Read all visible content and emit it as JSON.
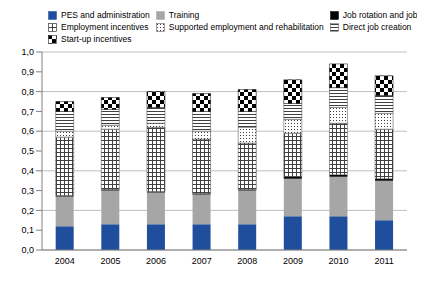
{
  "chart_data": {
    "type": "bar",
    "stacked": true,
    "grid": true,
    "legend": "top",
    "categories": [
      "2004",
      "2005",
      "2006",
      "2007",
      "2008",
      "2009",
      "2010",
      "2011"
    ],
    "ylim": [
      0,
      1
    ],
    "yticks": [
      {
        "value": 0,
        "label": "0,0"
      },
      {
        "value": 0.1,
        "label": "0,1"
      },
      {
        "value": 0.2,
        "label": "0,2"
      },
      {
        "value": 0.3,
        "label": "0,3"
      },
      {
        "value": 0.4,
        "label": "0,4"
      },
      {
        "value": 0.5,
        "label": "0,5"
      },
      {
        "value": 0.6,
        "label": "0,6"
      },
      {
        "value": 0.7,
        "label": "0,7"
      },
      {
        "value": 0.8,
        "label": "0,8"
      },
      {
        "value": 0.9,
        "label": "0,9"
      },
      {
        "value": 1,
        "label": "1,0"
      }
    ],
    "series": [
      {
        "name": "PES and administration",
        "color": "#1f4e9c",
        "values": [
          0.12,
          0.13,
          0.13,
          0.13,
          0.13,
          0.17,
          0.17,
          0.15
        ]
      },
      {
        "name": "Training",
        "color": "#a6a6a6",
        "values": [
          0.15,
          0.17,
          0.16,
          0.15,
          0.17,
          0.19,
          0.2,
          0.2
        ]
      },
      {
        "name": "Job rotation and job sharing",
        "color": "#000000",
        "values": [
          0.005,
          0.005,
          0.005,
          0.005,
          0.005,
          0.01,
          0.01,
          0.01
        ]
      },
      {
        "name": "Employment incentives",
        "color": "#404040",
        "values": [
          0.295,
          0.305,
          0.325,
          0.275,
          0.235,
          0.22,
          0.26,
          0.25
        ]
      },
      {
        "name": "Supported employment and rehabilitation",
        "color": "#404040",
        "values": [
          0.03,
          0.02,
          0.02,
          0.04,
          0.08,
          0.07,
          0.08,
          0.08
        ]
      },
      {
        "name": "Direct job creation",
        "color": "#404040",
        "values": [
          0.1,
          0.08,
          0.08,
          0.1,
          0.08,
          0.08,
          0.1,
          0.09
        ]
      },
      {
        "name": "Start-up incentives",
        "color": "#000000",
        "values": [
          0.05,
          0.06,
          0.08,
          0.09,
          0.11,
          0.12,
          0.12,
          0.1
        ]
      }
    ]
  }
}
